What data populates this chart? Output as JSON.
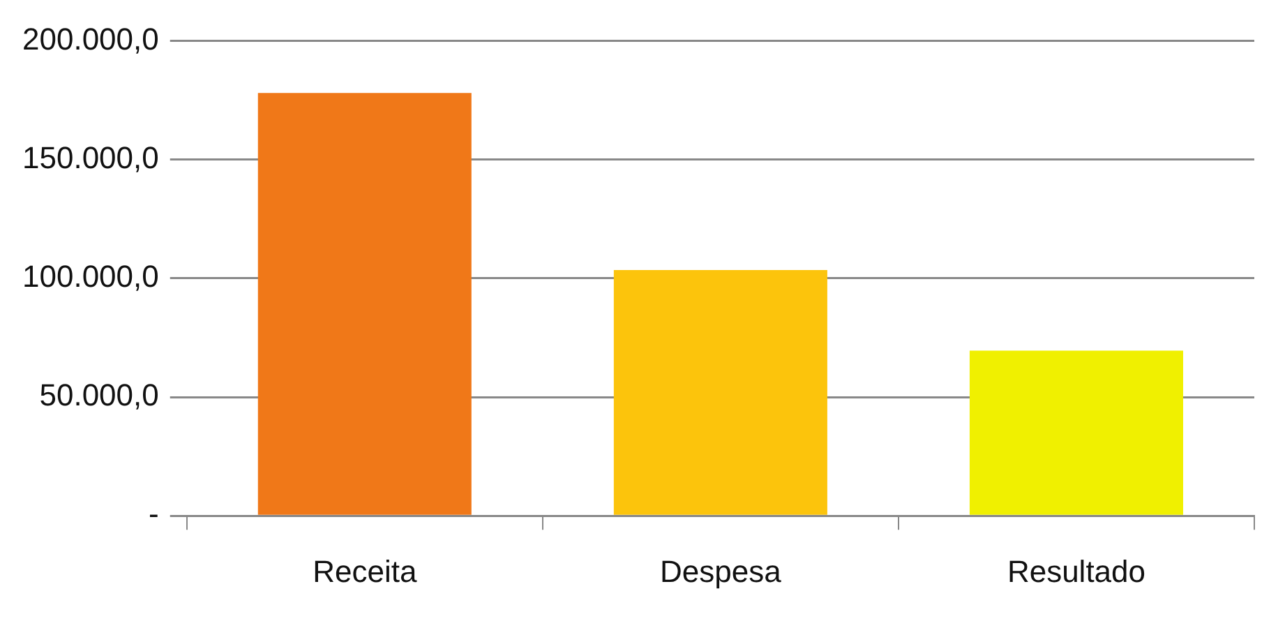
{
  "chart_data": {
    "type": "bar",
    "categories": [
      "Receita",
      "Despesa",
      "Resultado"
    ],
    "values": [
      178000,
      103500,
      69500
    ],
    "colors": [
      "#f07818",
      "#fcc40c",
      "#f0f000"
    ],
    "ylim": [
      0,
      200000
    ],
    "yticks": [
      {
        "value": 0,
        "label": "-"
      },
      {
        "value": 50000,
        "label": "50.000,0"
      },
      {
        "value": 100000,
        "label": "100.000,0"
      },
      {
        "value": 150000,
        "label": "150.000,0"
      },
      {
        "value": 200000,
        "label": "200.000,0"
      }
    ],
    "grid": "y",
    "legend": false
  }
}
